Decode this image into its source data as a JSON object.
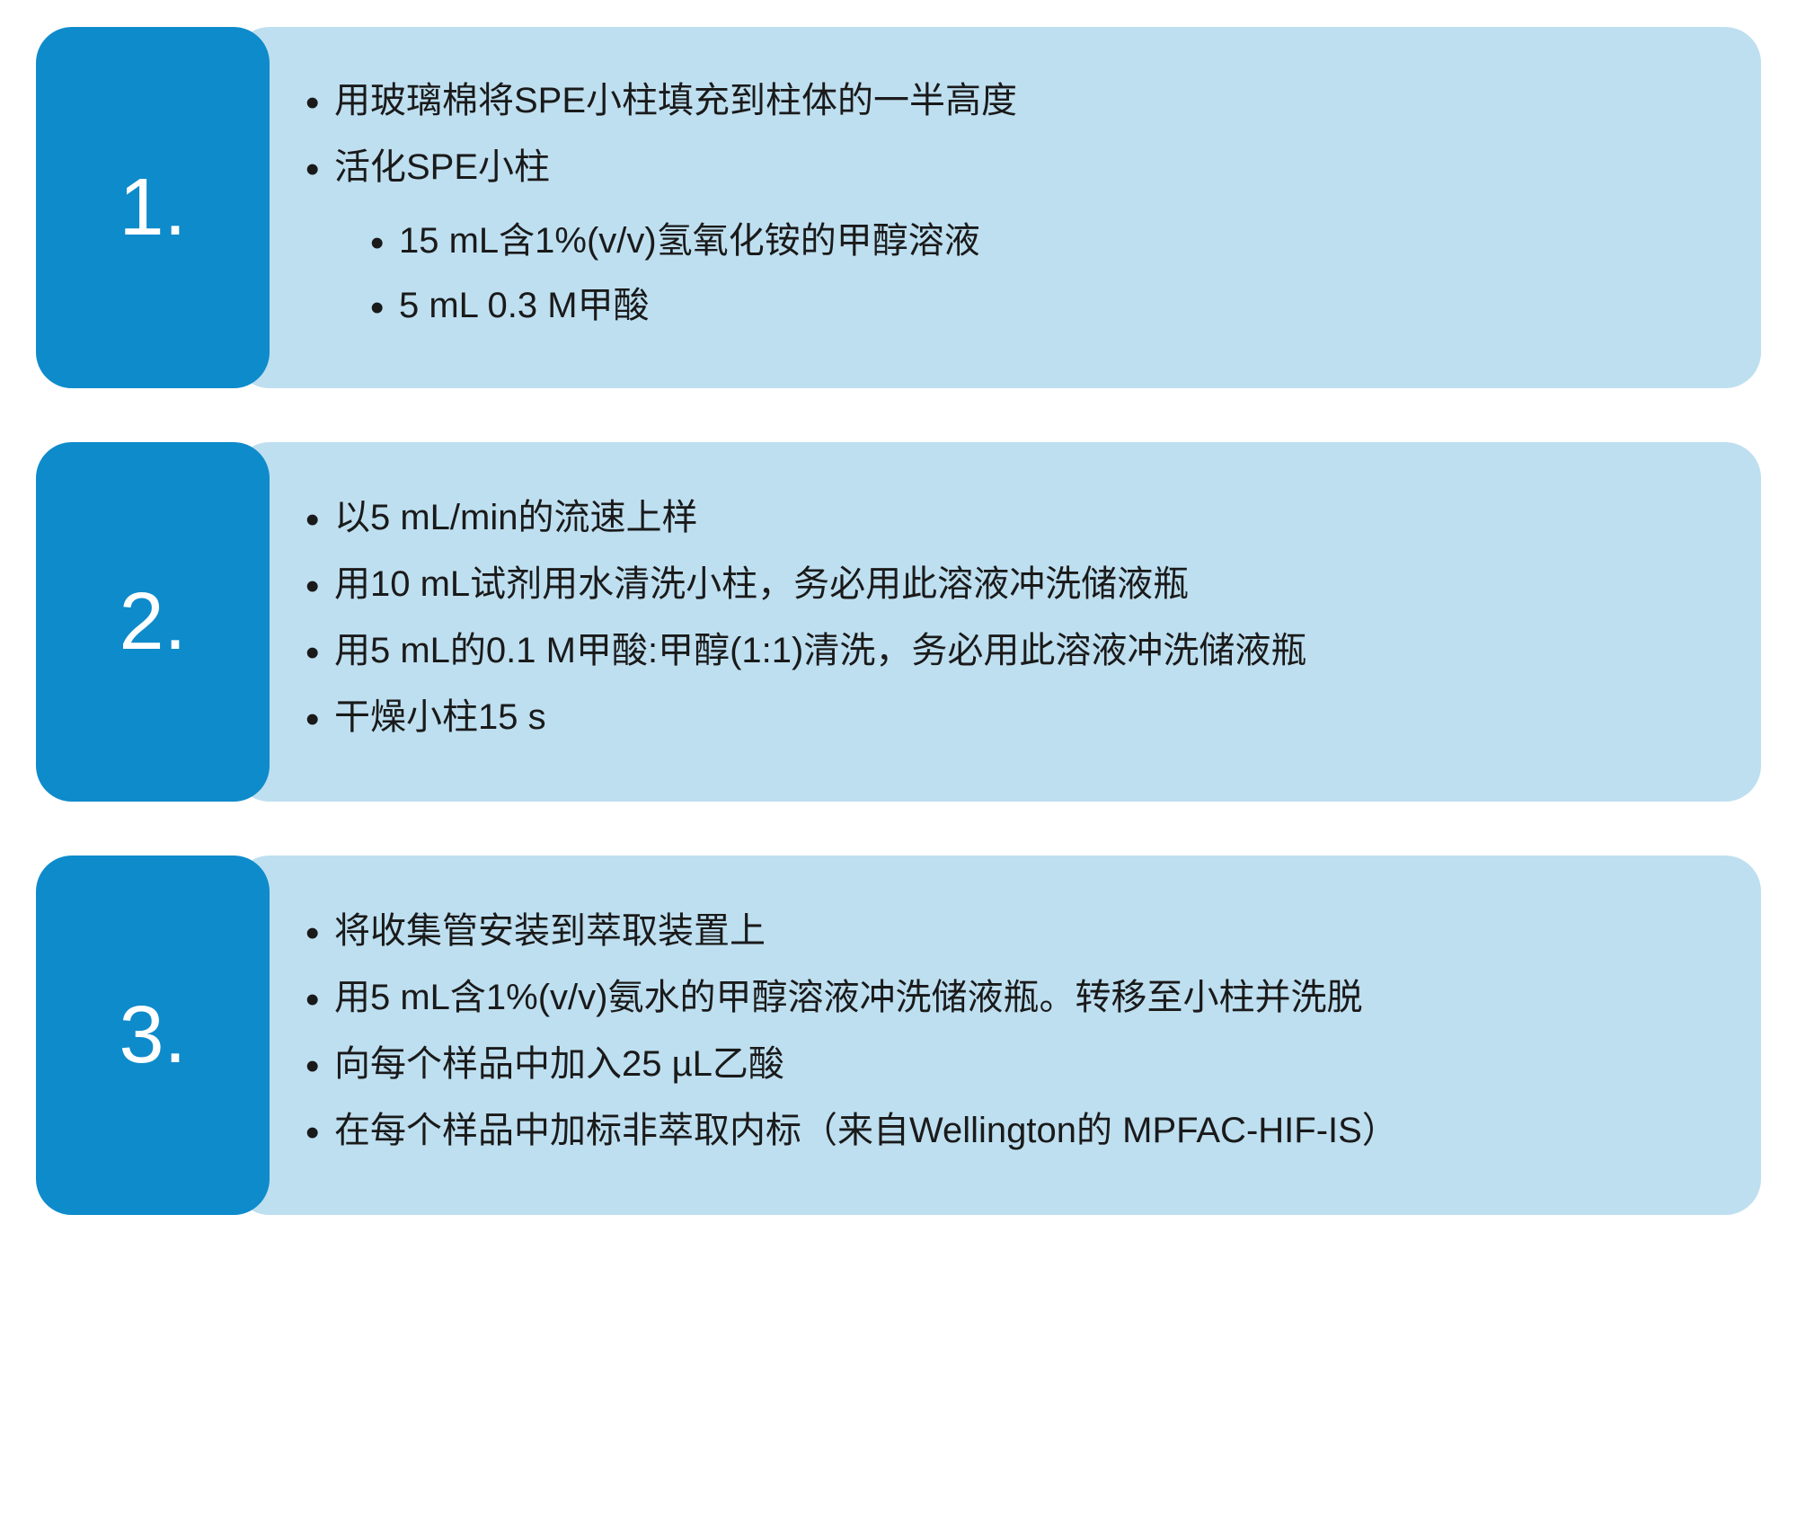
{
  "colors": {
    "number_bg": "#0e8bcb",
    "content_bg": "#bedff0",
    "number_text": "#ffffff",
    "body_text": "#1a1a1a",
    "page_bg": "#ffffff"
  },
  "layout": {
    "number_box_width": 260,
    "border_radius": 40,
    "row_gap": 60,
    "number_fontsize": 90,
    "bullet_fontsize": 40,
    "min_content_height": 400
  },
  "steps": [
    {
      "number": "1.",
      "items": [
        {
          "text": "用玻璃棉将SPE小柱填充到柱体的一半高度",
          "sub": []
        },
        {
          "text": "活化SPE小柱",
          "sub": [
            "15 mL含1%(v/v)氢氧化铵的甲醇溶液",
            "5 mL 0.3 M甲酸"
          ]
        }
      ]
    },
    {
      "number": "2.",
      "items": [
        {
          "text": "以5 mL/min的流速上样",
          "sub": []
        },
        {
          "text": "用10 mL试剂用水清洗小柱，务必用此溶液冲洗储液瓶",
          "sub": []
        },
        {
          "text": "用5 mL的0.1 M甲酸:甲醇(1:1)清洗，务必用此溶液冲洗储液瓶",
          "sub": []
        },
        {
          "text": "干燥小柱15 s",
          "sub": []
        }
      ]
    },
    {
      "number": "3.",
      "items": [
        {
          "text": "将收集管安装到萃取装置上",
          "sub": []
        },
        {
          "text": "用5 mL含1%(v/v)氨水的甲醇溶液冲洗储液瓶。转移至小柱并洗脱",
          "sub": []
        },
        {
          "text": "向每个样品中加入25 µL乙酸",
          "sub": []
        },
        {
          "text": "在每个样品中加标非萃取内标（来自Wellington的 MPFAC-HIF-IS）",
          "sub": []
        }
      ]
    }
  ]
}
